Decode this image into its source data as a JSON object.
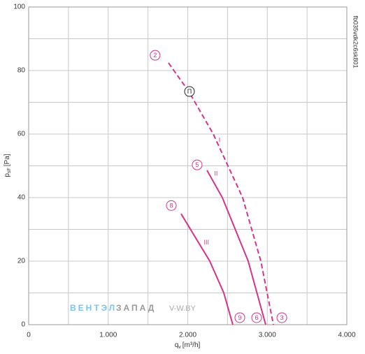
{
  "chart_data": {
    "type": "line",
    "xlabel": {
      "main": "q",
      "sub": "v",
      "unit": "[m³/h]"
    },
    "ylabel": {
      "main": "p",
      "sub": "sF",
      "unit": "[Pa]"
    },
    "code": "fb035vdk2c6sk801",
    "watermark": {
      "first": "ВЕНТЭЛ",
      "second": "ЗАПАД",
      "site": "V-W.BY"
    },
    "xlim": [
      0,
      4000
    ],
    "ylim": [
      0,
      100
    ],
    "xticks": [
      0,
      {
        "value": 1000,
        "label": "1.000"
      },
      {
        "value": 2000,
        "label": "2.000"
      },
      {
        "value": 3000,
        "label": "3.000"
      },
      {
        "value": 4000,
        "label": "4.000"
      }
    ],
    "x_minor_ticks": [
      500,
      1500,
      2500,
      3500
    ],
    "yticks": [
      0,
      20,
      40,
      60,
      80,
      100
    ],
    "y_minor_ticks": [
      10,
      30,
      50,
      70,
      90
    ],
    "grid": true,
    "series": [
      {
        "name": "I",
        "color": "#d6338a",
        "dashed": true,
        "x": [
          1758,
          2013,
          2321,
          2690,
          2919,
          3077
        ],
        "values": [
          82.4,
          73.4,
          60,
          40,
          20,
          0
        ]
      },
      {
        "name": "II",
        "color": "#d6338a",
        "dashed": false,
        "x": [
          2242,
          2435,
          2760,
          2980
        ],
        "values": [
          48.6,
          40,
          20,
          0
        ]
      },
      {
        "name": "III",
        "color": "#d6338a",
        "dashed": false,
        "x": [
          1916,
          2277,
          2453,
          2567
        ],
        "values": [
          34.9,
          20,
          10,
          0
        ]
      }
    ],
    "series_label_positions": [
      {
        "x": 2400,
        "y": 58
      },
      {
        "x": 2355,
        "y": 47.5
      },
      {
        "x": 2235,
        "y": 25.8
      }
    ],
    "annotations": [
      {
        "text": "2",
        "x": 1590,
        "y": 84.8,
        "color": "#d6338a"
      },
      {
        "text": "П",
        "x": 2022,
        "y": 73.4,
        "color": "#222222"
      },
      {
        "text": "5",
        "x": 2118,
        "y": 50.3,
        "color": "#d6338a"
      },
      {
        "text": "8",
        "x": 1793,
        "y": 37.5,
        "color": "#d6338a"
      },
      {
        "text": "9",
        "x": 2655,
        "y": 2.2,
        "color": "#d6338a"
      },
      {
        "text": "6",
        "x": 2866,
        "y": 2.2,
        "color": "#d6338a"
      },
      {
        "text": "3",
        "x": 3183,
        "y": 2.2,
        "color": "#d6338a"
      }
    ]
  }
}
